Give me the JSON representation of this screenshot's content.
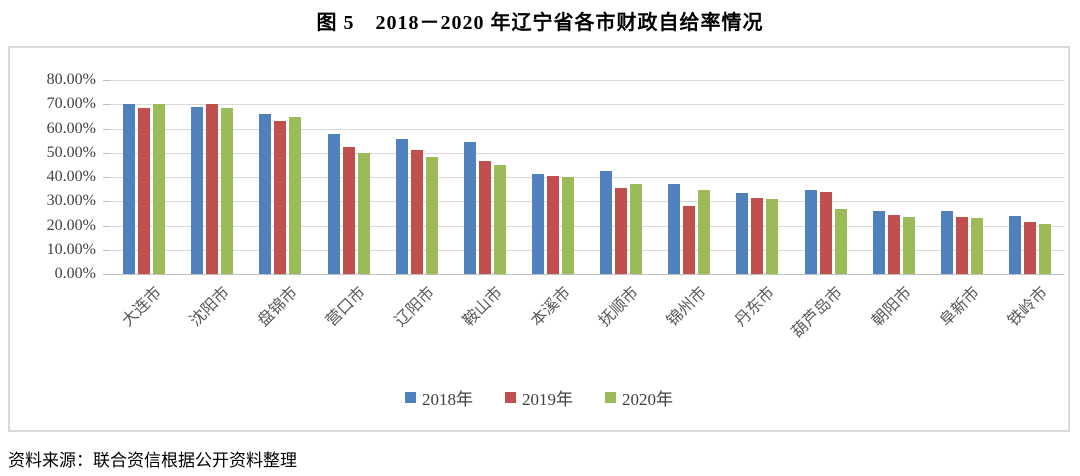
{
  "title": "图 5　2018－2020 年辽宁省各市财政自给率情况",
  "source_note": "资料来源：联合资信根据公开资料整理",
  "chart_data": {
    "type": "bar",
    "title": "图 5　2018－2020 年辽宁省各市财政自给率情况",
    "categories": [
      "大连市",
      "沈阳市",
      "盘锦市",
      "营口市",
      "辽阳市",
      "鞍山市",
      "本溪市",
      "抚顺市",
      "锦州市",
      "丹东市",
      "葫芦岛市",
      "朝阳市",
      "阜新市",
      "铁岭市"
    ],
    "series": [
      {
        "name": "2018年",
        "color": "#4F81BD",
        "values": [
          70.1,
          68.8,
          65.8,
          57.6,
          55.8,
          54.6,
          41.1,
          42.5,
          37.0,
          33.5,
          34.5,
          26.1,
          26.0,
          24.1
        ]
      },
      {
        "name": "2019年",
        "color": "#C0504D",
        "values": [
          68.3,
          69.9,
          63.0,
          52.4,
          51.3,
          46.7,
          40.6,
          35.6,
          27.9,
          31.5,
          33.9,
          24.3,
          23.5,
          21.6
        ]
      },
      {
        "name": "2020年",
        "color": "#9BBB59",
        "values": [
          70.0,
          68.5,
          64.8,
          50.1,
          48.3,
          44.8,
          40.1,
          37.0,
          34.5,
          31.1,
          27.0,
          23.5,
          23.1,
          20.5
        ]
      }
    ],
    "xlabel": "",
    "ylabel": "",
    "ylim": [
      0,
      80
    ],
    "y_tick_labels": [
      "80.00%",
      "70.00%",
      "60.00%",
      "50.00%",
      "40.00%",
      "30.00%",
      "20.00%",
      "10.00%",
      "0.00%"
    ],
    "grid": true,
    "legend_position": "bottom",
    "value_format": "percent"
  },
  "colors": {
    "grid": "#D9D9D9",
    "axis": "#BFBFBF",
    "y_tick_text": "#404040",
    "x_tick_text": "#595959",
    "title_text": "#000000"
  }
}
